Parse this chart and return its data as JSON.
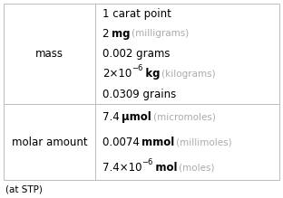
{
  "bg_color": "#ffffff",
  "border_color": "#bbbbbb",
  "text_color": "#000000",
  "gray_color": "#aaaaaa",
  "footer": "(at STP)",
  "row1_label": "mass",
  "row2_label": "molar amount",
  "row1_lines": [
    [
      {
        "t": "1 carat point",
        "w": "normal",
        "g": false,
        "sup": false
      }
    ],
    [
      {
        "t": "2 ",
        "w": "normal",
        "g": false,
        "sup": false
      },
      {
        "t": "mg",
        "w": "bold",
        "g": false,
        "sup": false
      },
      {
        "t": " (milligrams)",
        "w": "normal",
        "g": true,
        "sup": false
      }
    ],
    [
      {
        "t": "0.002 grams",
        "w": "normal",
        "g": false,
        "sup": false
      }
    ],
    [
      {
        "t": "2×10",
        "w": "normal",
        "g": false,
        "sup": false
      },
      {
        "t": "−6",
        "w": "normal",
        "g": false,
        "sup": true
      },
      {
        "t": " kg",
        "w": "bold",
        "g": false,
        "sup": false
      },
      {
        "t": " (kilograms)",
        "w": "normal",
        "g": true,
        "sup": false
      }
    ],
    [
      {
        "t": "0.0309 grains",
        "w": "normal",
        "g": false,
        "sup": false
      }
    ]
  ],
  "row2_lines": [
    [
      {
        "t": "7.4 ",
        "w": "normal",
        "g": false,
        "sup": false
      },
      {
        "t": "μmol",
        "w": "bold",
        "g": false,
        "sup": false
      },
      {
        "t": " (micromoles)",
        "w": "normal",
        "g": true,
        "sup": false
      }
    ],
    [
      {
        "t": "0.0074 ",
        "w": "normal",
        "g": false,
        "sup": false
      },
      {
        "t": "mmol",
        "w": "bold",
        "g": false,
        "sup": false
      },
      {
        "t": " (millimoles)",
        "w": "normal",
        "g": true,
        "sup": false
      }
    ],
    [
      {
        "t": "7.4×10",
        "w": "normal",
        "g": false,
        "sup": false
      },
      {
        "t": "−6",
        "w": "normal",
        "g": false,
        "sup": true
      },
      {
        "t": " mol",
        "w": "bold",
        "g": false,
        "sup": false
      },
      {
        "t": " (moles)",
        "w": "normal",
        "g": true,
        "sup": false
      }
    ]
  ],
  "fs": 8.5,
  "fs_gray": 7.5,
  "fs_sup": 6.0,
  "fs_footer": 7.5,
  "fig_w": 3.12,
  "fig_h": 2.19,
  "dpi": 100
}
